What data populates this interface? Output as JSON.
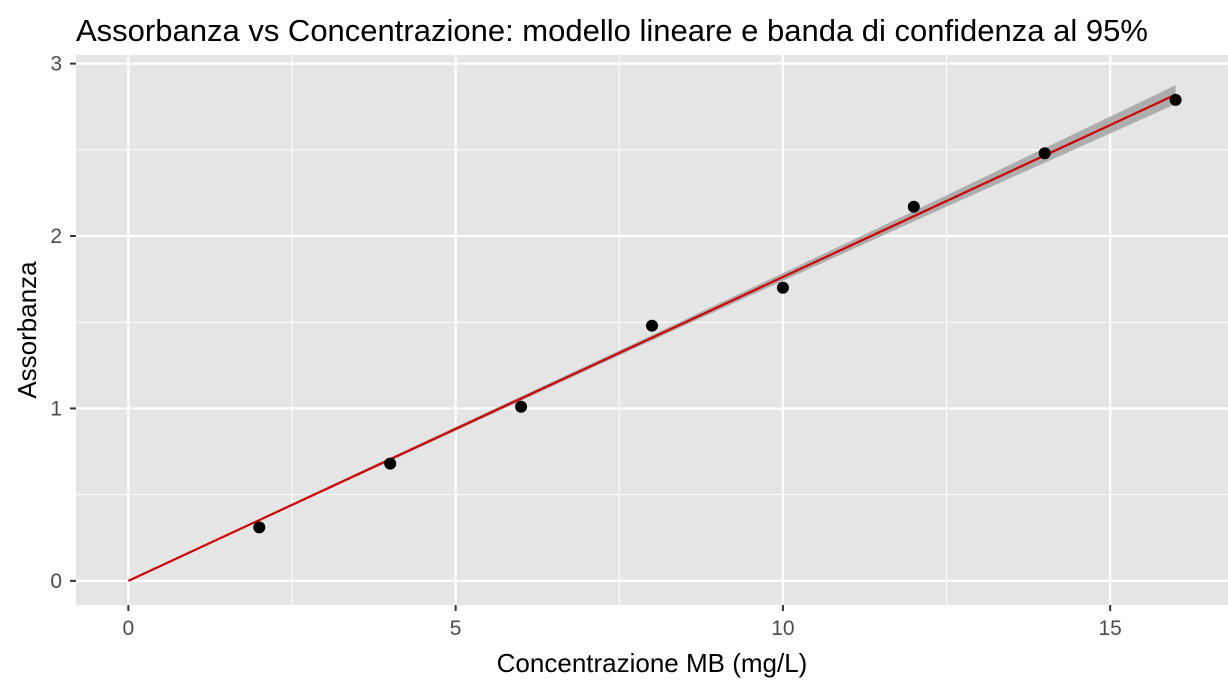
{
  "chart_data": {
    "type": "scatter",
    "title": "Assorbanza vs Concentrazione: modello lineare e banda di confidenza al 95%",
    "xlabel": "Concentrazione MB (mg/L)",
    "ylabel": "Assorbanza",
    "xlim": [
      -0.8,
      16.8
    ],
    "ylim": [
      -0.14,
      3.05
    ],
    "x_ticks": [
      0,
      5,
      10,
      15
    ],
    "y_ticks": [
      0,
      1,
      2,
      3
    ],
    "x_tick_labels": [
      "0",
      "5",
      "10",
      "15"
    ],
    "y_tick_labels": [
      "0",
      "1",
      "2",
      "3"
    ],
    "grid": true,
    "series": [
      {
        "type": "scatter",
        "color": "#000000",
        "x": [
          2,
          4,
          6,
          8,
          10,
          12,
          14,
          16
        ],
        "y": [
          0.31,
          0.68,
          1.01,
          1.48,
          1.7,
          2.17,
          2.48,
          2.79
        ]
      },
      {
        "type": "line",
        "color": "#cc0000",
        "x": [
          0,
          16
        ],
        "y": [
          0.0,
          2.82
        ]
      },
      {
        "type": "confidence_band",
        "color": "#a6a6a6",
        "x": [
          0,
          4,
          8,
          12,
          16
        ],
        "lower": [
          0.0,
          0.695,
          1.395,
          2.085,
          2.765
        ],
        "upper": [
          0.0,
          0.715,
          1.425,
          2.145,
          2.875
        ]
      }
    ],
    "colors": {
      "panel_background": "#e5e5e5",
      "grid": "#ffffff",
      "fit_line": "#cc0000",
      "band": "#a6a6a6",
      "points": "#000000"
    }
  }
}
